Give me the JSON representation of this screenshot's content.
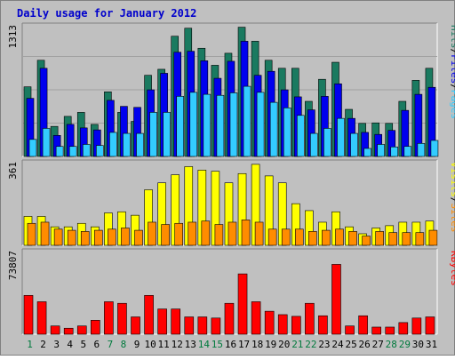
{
  "title": "Daily usage for January 2012",
  "days": [
    "1",
    "2",
    "3",
    "4",
    "5",
    "6",
    "7",
    "8",
    "9",
    "10",
    "11",
    "12",
    "13",
    "14",
    "15",
    "16",
    "17",
    "18",
    "19",
    "20",
    "21",
    "22",
    "23",
    "24",
    "25",
    "26",
    "27",
    "28",
    "29",
    "30",
    "31"
  ],
  "weekend_days": [
    "1",
    "7",
    "8",
    "14",
    "15",
    "21",
    "22",
    "28",
    "29"
  ],
  "colors": {
    "background": "#c0c0c0",
    "title": "#0000cc",
    "hits": "#1a7a60",
    "files": "#0000ee",
    "pages": "#33ccff",
    "visits": "#ffff00",
    "sites": "#ff8c00",
    "kbytes": "#ff0000",
    "weekday_label": "#000000",
    "weekend_label": "#007a3d"
  },
  "chart_data": [
    {
      "type": "bar",
      "name": "hits-files-pages",
      "ymax_label": "1313",
      "ylim": [
        0,
        1313
      ],
      "legend": [
        "Pages",
        "/",
        "Files",
        "/",
        "Hits"
      ],
      "series": [
        {
          "name": "Hits",
          "values": [
            695,
            960,
            300,
            400,
            440,
            320,
            645,
            440,
            350,
            810,
            870,
            1200,
            1280,
            1080,
            910,
            1030,
            1290,
            1150,
            960,
            880,
            880,
            550,
            770,
            940,
            470,
            330,
            335,
            330,
            550,
            760,
            880
          ]
        },
        {
          "name": "Files",
          "values": [
            580,
            880,
            210,
            320,
            285,
            265,
            560,
            500,
            490,
            665,
            830,
            1040,
            1050,
            955,
            780,
            950,
            1150,
            810,
            850,
            665,
            595,
            465,
            600,
            725,
            380,
            240,
            220,
            260,
            460,
            620,
            690
          ]
        },
        {
          "name": "Pages",
          "values": [
            170,
            280,
            100,
            100,
            120,
            110,
            240,
            230,
            230,
            440,
            440,
            600,
            640,
            620,
            610,
            635,
            700,
            640,
            540,
            485,
            410,
            230,
            280,
            380,
            230,
            80,
            120,
            95,
            100,
            130,
            160
          ]
        }
      ]
    },
    {
      "type": "bar",
      "name": "visits-sites",
      "ymax_label": "361",
      "ylim": [
        0,
        361
      ],
      "legend": [
        "Sites",
        "/",
        "Visits"
      ],
      "series": [
        {
          "name": "Visits",
          "values": [
            125,
            125,
            80,
            80,
            95,
            80,
            140,
            145,
            130,
            240,
            270,
            305,
            340,
            325,
            320,
            270,
            310,
            350,
            300,
            270,
            180,
            150,
            100,
            145,
            80,
            50,
            75,
            85,
            100,
            100,
            105
          ]
        },
        {
          "name": "Sites",
          "values": [
            95,
            100,
            70,
            65,
            60,
            65,
            70,
            75,
            65,
            100,
            90,
            95,
            100,
            105,
            90,
            100,
            110,
            100,
            70,
            70,
            70,
            60,
            65,
            70,
            60,
            40,
            60,
            55,
            55,
            55,
            65
          ]
        }
      ]
    },
    {
      "type": "bar",
      "name": "kbytes",
      "ymax_label": "73807",
      "ylim": [
        0,
        73807
      ],
      "legend": [
        "KBytes"
      ],
      "series": [
        {
          "name": "KBytes",
          "values": [
            34300,
            28700,
            7300,
            5300,
            7300,
            12300,
            28700,
            27300,
            15300,
            34300,
            22300,
            22300,
            15300,
            15300,
            14300,
            27300,
            53300,
            28700,
            20300,
            17300,
            15800,
            27300,
            16300,
            61700,
            7300,
            16300,
            6300,
            6300,
            10300,
            14300,
            15300
          ]
        }
      ]
    }
  ]
}
